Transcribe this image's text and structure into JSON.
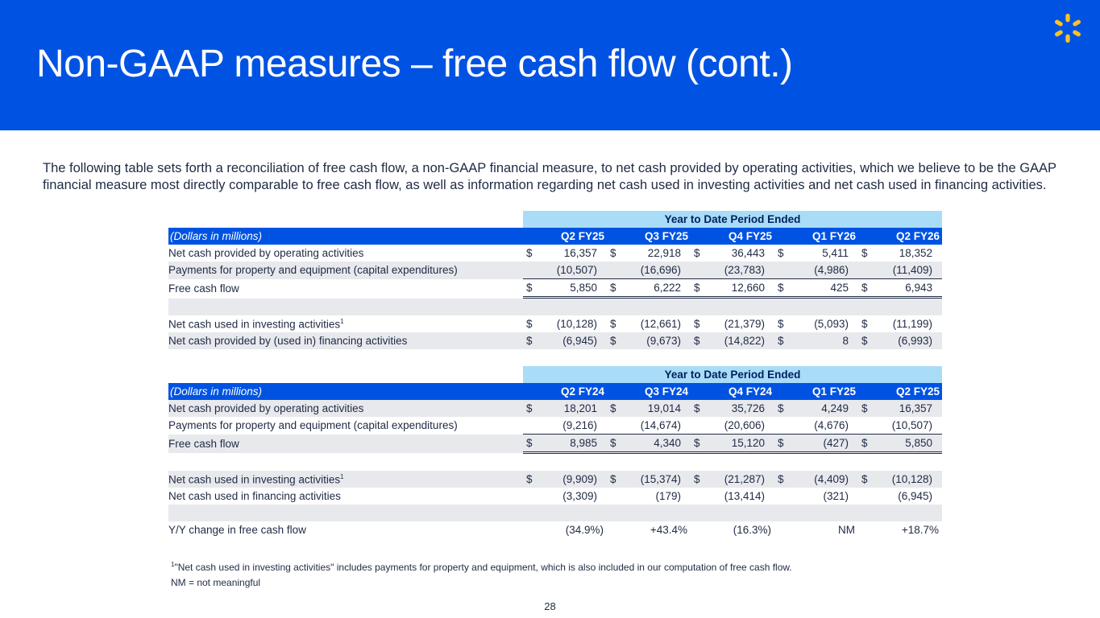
{
  "title": "Non-GAAP measures – free cash flow (cont.)",
  "intro": "The following table sets forth a reconciliation of free cash flow, a non-GAAP financial measure, to net cash provided by operating activities, which we believe to be the GAAP financial measure most directly comparable to free cash flow, as well as information regarding net cash used in investing activities and net cash used in financing activities.",
  "colors": {
    "brand_blue": "#0053e2",
    "spark_yellow": "#ffc220",
    "ytd_band": "#a9ddf7",
    "row_shade": "#e8e9ed"
  },
  "icons": {
    "logo": "spark-icon"
  },
  "table1": {
    "ytd_label": "Year to Date Period Ended",
    "unit_label": "(Dollars in millions)",
    "periods": [
      "Q2 FY25",
      "Q3 FY25",
      "Q4 FY25",
      "Q1 FY26",
      "Q2 FY26"
    ],
    "rows": {
      "ops": {
        "label": "Net cash provided by operating activities",
        "values": [
          "16,357",
          "22,918",
          "36,443",
          "5,411",
          "18,352"
        ]
      },
      "capex": {
        "label": "Payments for property and equipment (capital expenditures)",
        "values": [
          "(10,507)",
          "(16,696)",
          "(23,783)",
          "(4,986)",
          "(11,409)"
        ]
      },
      "fcf": {
        "label": "Free cash flow",
        "values": [
          "5,850",
          "6,222",
          "12,660",
          "425",
          "6,943"
        ]
      },
      "inv": {
        "label": "Net cash used in investing activities",
        "footnote": "1",
        "values": [
          "(10,128)",
          "(12,661)",
          "(21,379)",
          "(5,093)",
          "(11,199)"
        ]
      },
      "fin": {
        "label": "Net cash provided by (used in) financing activities",
        "values": [
          "(6,945)",
          "(9,673)",
          "(14,822)",
          "8",
          "(6,993)"
        ]
      }
    }
  },
  "table2": {
    "ytd_label": "Year to Date Period Ended",
    "unit_label": "(Dollars in millions)",
    "periods": [
      "Q2 FY24",
      "Q3 FY24",
      "Q4 FY24",
      "Q1 FY25",
      "Q2 FY25"
    ],
    "rows": {
      "ops": {
        "label": "Net cash provided by operating activities",
        "values": [
          "18,201",
          "19,014",
          "35,726",
          "4,249",
          "16,357"
        ]
      },
      "capex": {
        "label": "Payments for property and equipment (capital expenditures)",
        "values": [
          "(9,216)",
          "(14,674)",
          "(20,606)",
          "(4,676)",
          "(10,507)"
        ]
      },
      "fcf": {
        "label": "Free cash flow",
        "values": [
          "8,985",
          "4,340",
          "15,120",
          "(427)",
          "5,850"
        ]
      },
      "inv": {
        "label": "Net cash used in investing activities",
        "footnote": "1",
        "values": [
          "(9,909)",
          "(15,374)",
          "(21,287)",
          "(4,409)",
          "(10,128)"
        ]
      },
      "fin": {
        "label": "Net cash used in financing activities",
        "values": [
          "(3,309)",
          "(179)",
          "(13,414)",
          "(321)",
          "(6,945)"
        ]
      }
    },
    "yoy": {
      "label": "Y/Y change in free cash flow",
      "values": [
        "(34.9%)",
        "+43.4%",
        "(16.3%)",
        "NM",
        "+18.7%"
      ]
    }
  },
  "currency_symbol": "$",
  "footnotes": {
    "note1_marker": "1",
    "note1": "\"Net cash used in investing activities\" includes payments for property and equipment, which is also included in our computation of free cash flow.",
    "nm": "NM = not meaningful"
  },
  "page_number": "28"
}
